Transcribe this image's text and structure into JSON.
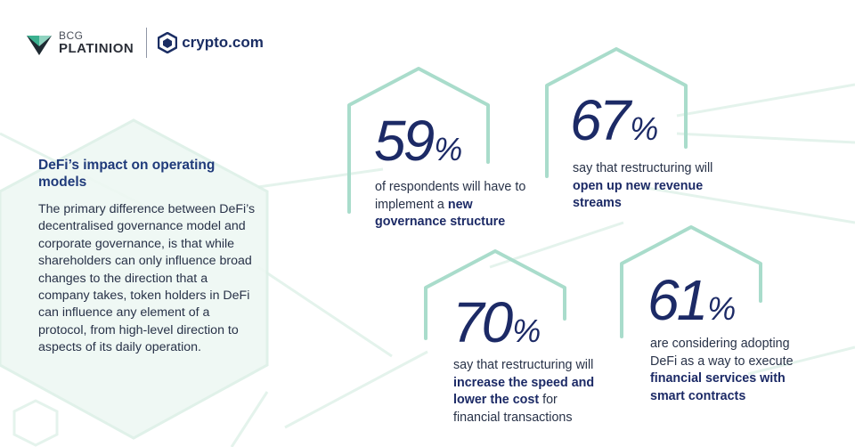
{
  "logos": {
    "bcg_top": "BCG",
    "bcg_bottom": "PLATINION",
    "crypto": "crypto.com"
  },
  "intro": {
    "title": "DeFi’s impact on operating models",
    "body": "The primary difference between DeFi’s decentralised governance model and corporate governance, is that while shareholders can only influence broad changes to the direction that a company takes, token holders in DeFi can influence any element of a protocol, from high-level direction to aspects of its daily operation."
  },
  "stats": [
    {
      "value": "59",
      "unit": "%",
      "text_plain": "of respondents will have to implement a ",
      "text_bold": "new governance structure",
      "text_after": ""
    },
    {
      "value": "67",
      "unit": "%",
      "text_plain": "say that restructuring will ",
      "text_bold": "open up new revenue streams",
      "text_after": ""
    },
    {
      "value": "70",
      "unit": "%",
      "text_plain": "say that restructuring will ",
      "text_bold": "increase the speed and lower the cost",
      "text_after": " for financial transactions"
    },
    {
      "value": "61",
      "unit": "%",
      "text_plain": "are considering adopting DeFi as a way to execute ",
      "text_bold": "financial services with smart contracts",
      "text_after": ""
    }
  ],
  "colors": {
    "accent_green": "#a9dccb",
    "faint_green": "#e6f4ee",
    "navy": "#1c2a66"
  }
}
